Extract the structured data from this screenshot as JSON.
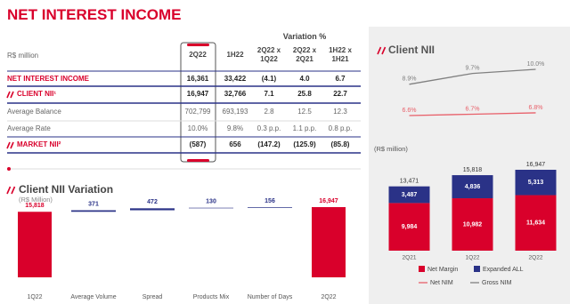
{
  "title": "NET INTEREST INCOME",
  "table": {
    "group_header": "Variation %",
    "header": [
      "R$ million",
      "2Q22",
      "1H22",
      "2Q22 x 1Q22",
      "2Q22 x 2Q21",
      "1H22 x 1H21"
    ],
    "rows": [
      [
        "NET INTEREST INCOME",
        "16,361",
        "33,422",
        "(4.1)",
        "4.0",
        "6.7"
      ],
      [
        "CLIENT NII¹",
        "16,947",
        "32,766",
        "7.1",
        "25.8",
        "22.7"
      ],
      [
        "Average Balance",
        "702,799",
        "693,193",
        "2.8",
        "12.5",
        "12.3"
      ],
      [
        "Average Rate",
        "10.0%",
        "9.8%",
        "0.3 p.p.",
        "1.1 p.p.",
        "0.8 p.p."
      ],
      [
        "MARKET NII²",
        "(587)",
        "656",
        "(147.2)",
        "(125.9)",
        "(85.8)"
      ]
    ]
  },
  "chart_data": [
    {
      "type": "waterfall",
      "title": "Client NII Variation",
      "subtitle": "(R$ Million)",
      "categories": [
        "1Q22",
        "Average Volume",
        "Spread",
        "Products Mix",
        "Number of Days",
        "2Q22"
      ],
      "values": [
        15818,
        371,
        472,
        130,
        156,
        16947
      ],
      "value_labels": [
        "15,818",
        "371",
        "472",
        "130",
        "156",
        "16,947"
      ],
      "total_color": "#d9002b",
      "step_color": "#2a3287"
    },
    {
      "type": "bar",
      "stacked": true,
      "title": "Client NII",
      "subtitle": "(R$ million)",
      "categories": [
        "2Q21",
        "1Q22",
        "2Q22"
      ],
      "series": [
        {
          "name": "Net Margin",
          "color": "#d9002b",
          "values": [
            9984,
            10982,
            11634
          ],
          "value_labels": [
            "9,984",
            "10,982",
            "11,634"
          ]
        },
        {
          "name": "Expanded ALL",
          "color": "#2a3287",
          "values": [
            3487,
            4836,
            5313
          ],
          "value_labels": [
            "3,487",
            "4,836",
            "5,313"
          ]
        },
        {
          "name": "Net NIM",
          "type": "line",
          "axis": "y2",
          "color": "#e8606a",
          "values": [
            6.6,
            6.7,
            6.8
          ],
          "value_labels": [
            "6.6%",
            "6.7%",
            "6.8%"
          ]
        },
        {
          "name": "Gross NIM",
          "type": "line",
          "axis": "y2",
          "color": "#808080",
          "values": [
            8.9,
            9.7,
            10.0
          ],
          "value_labels": [
            "8.9%",
            "9.7%",
            "10.0%"
          ]
        }
      ],
      "totals": [
        13471,
        15818,
        16947
      ],
      "total_labels": [
        "13,471",
        "15,818",
        "16,947"
      ]
    }
  ]
}
